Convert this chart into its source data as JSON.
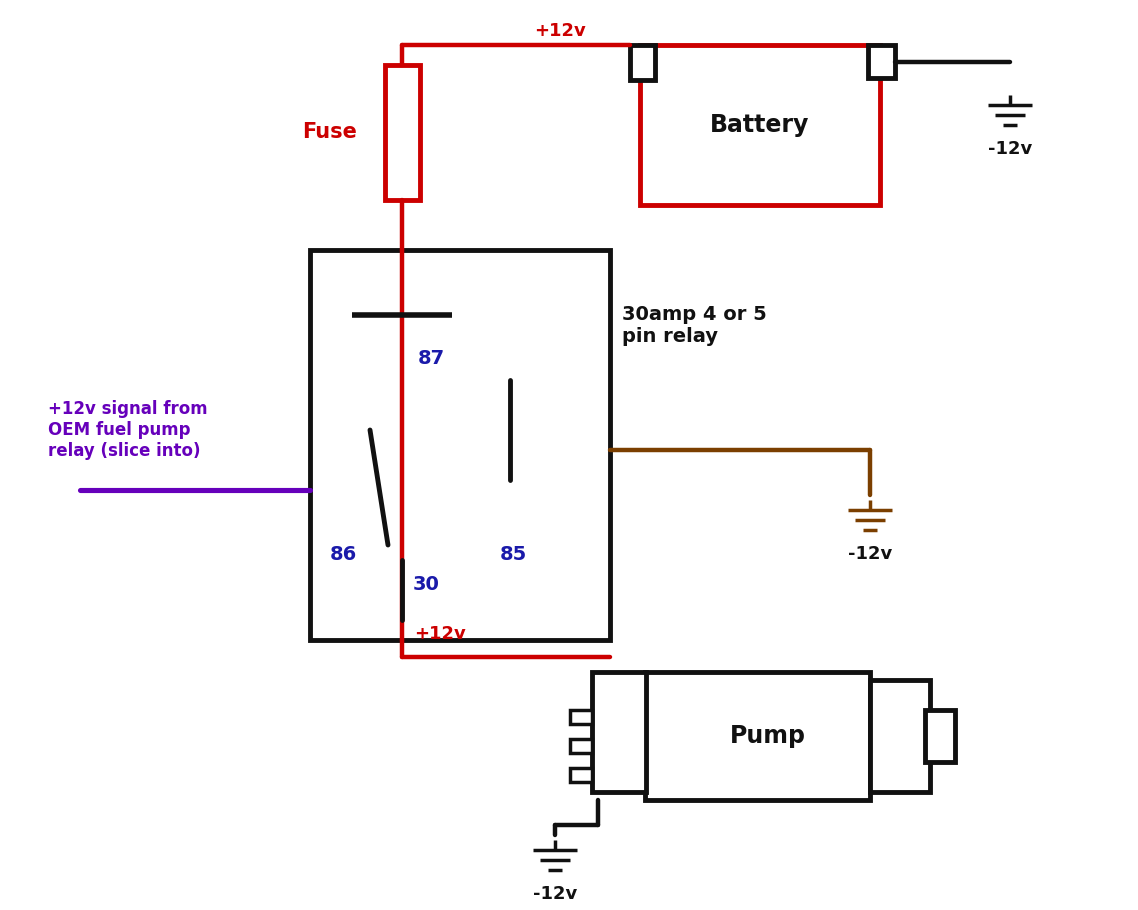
{
  "bg_color": "#ffffff",
  "wire_red": "#cc0000",
  "wire_black": "#111111",
  "wire_brown": "#7b3f00",
  "wire_purple": "#6600bb",
  "text_red": "#cc0000",
  "text_blue": "#1a1aaa",
  "text_black": "#111111",
  "text_brown": "#7b3f00",
  "text_purple": "#6600bb",
  "battery_label": "Battery",
  "fuse_label": "Fuse",
  "relay_label": "30amp 4 or 5\npin relay",
  "pump_label": "Pump",
  "oem_label": "+12v signal from\nOEM fuel pump\nrelay (slice into)",
  "plus12v_top": "+12v",
  "plus12v_bot": "+12v",
  "minus12v_1": "-12v",
  "minus12v_2": "-12v",
  "minus12v_3": "-12v"
}
